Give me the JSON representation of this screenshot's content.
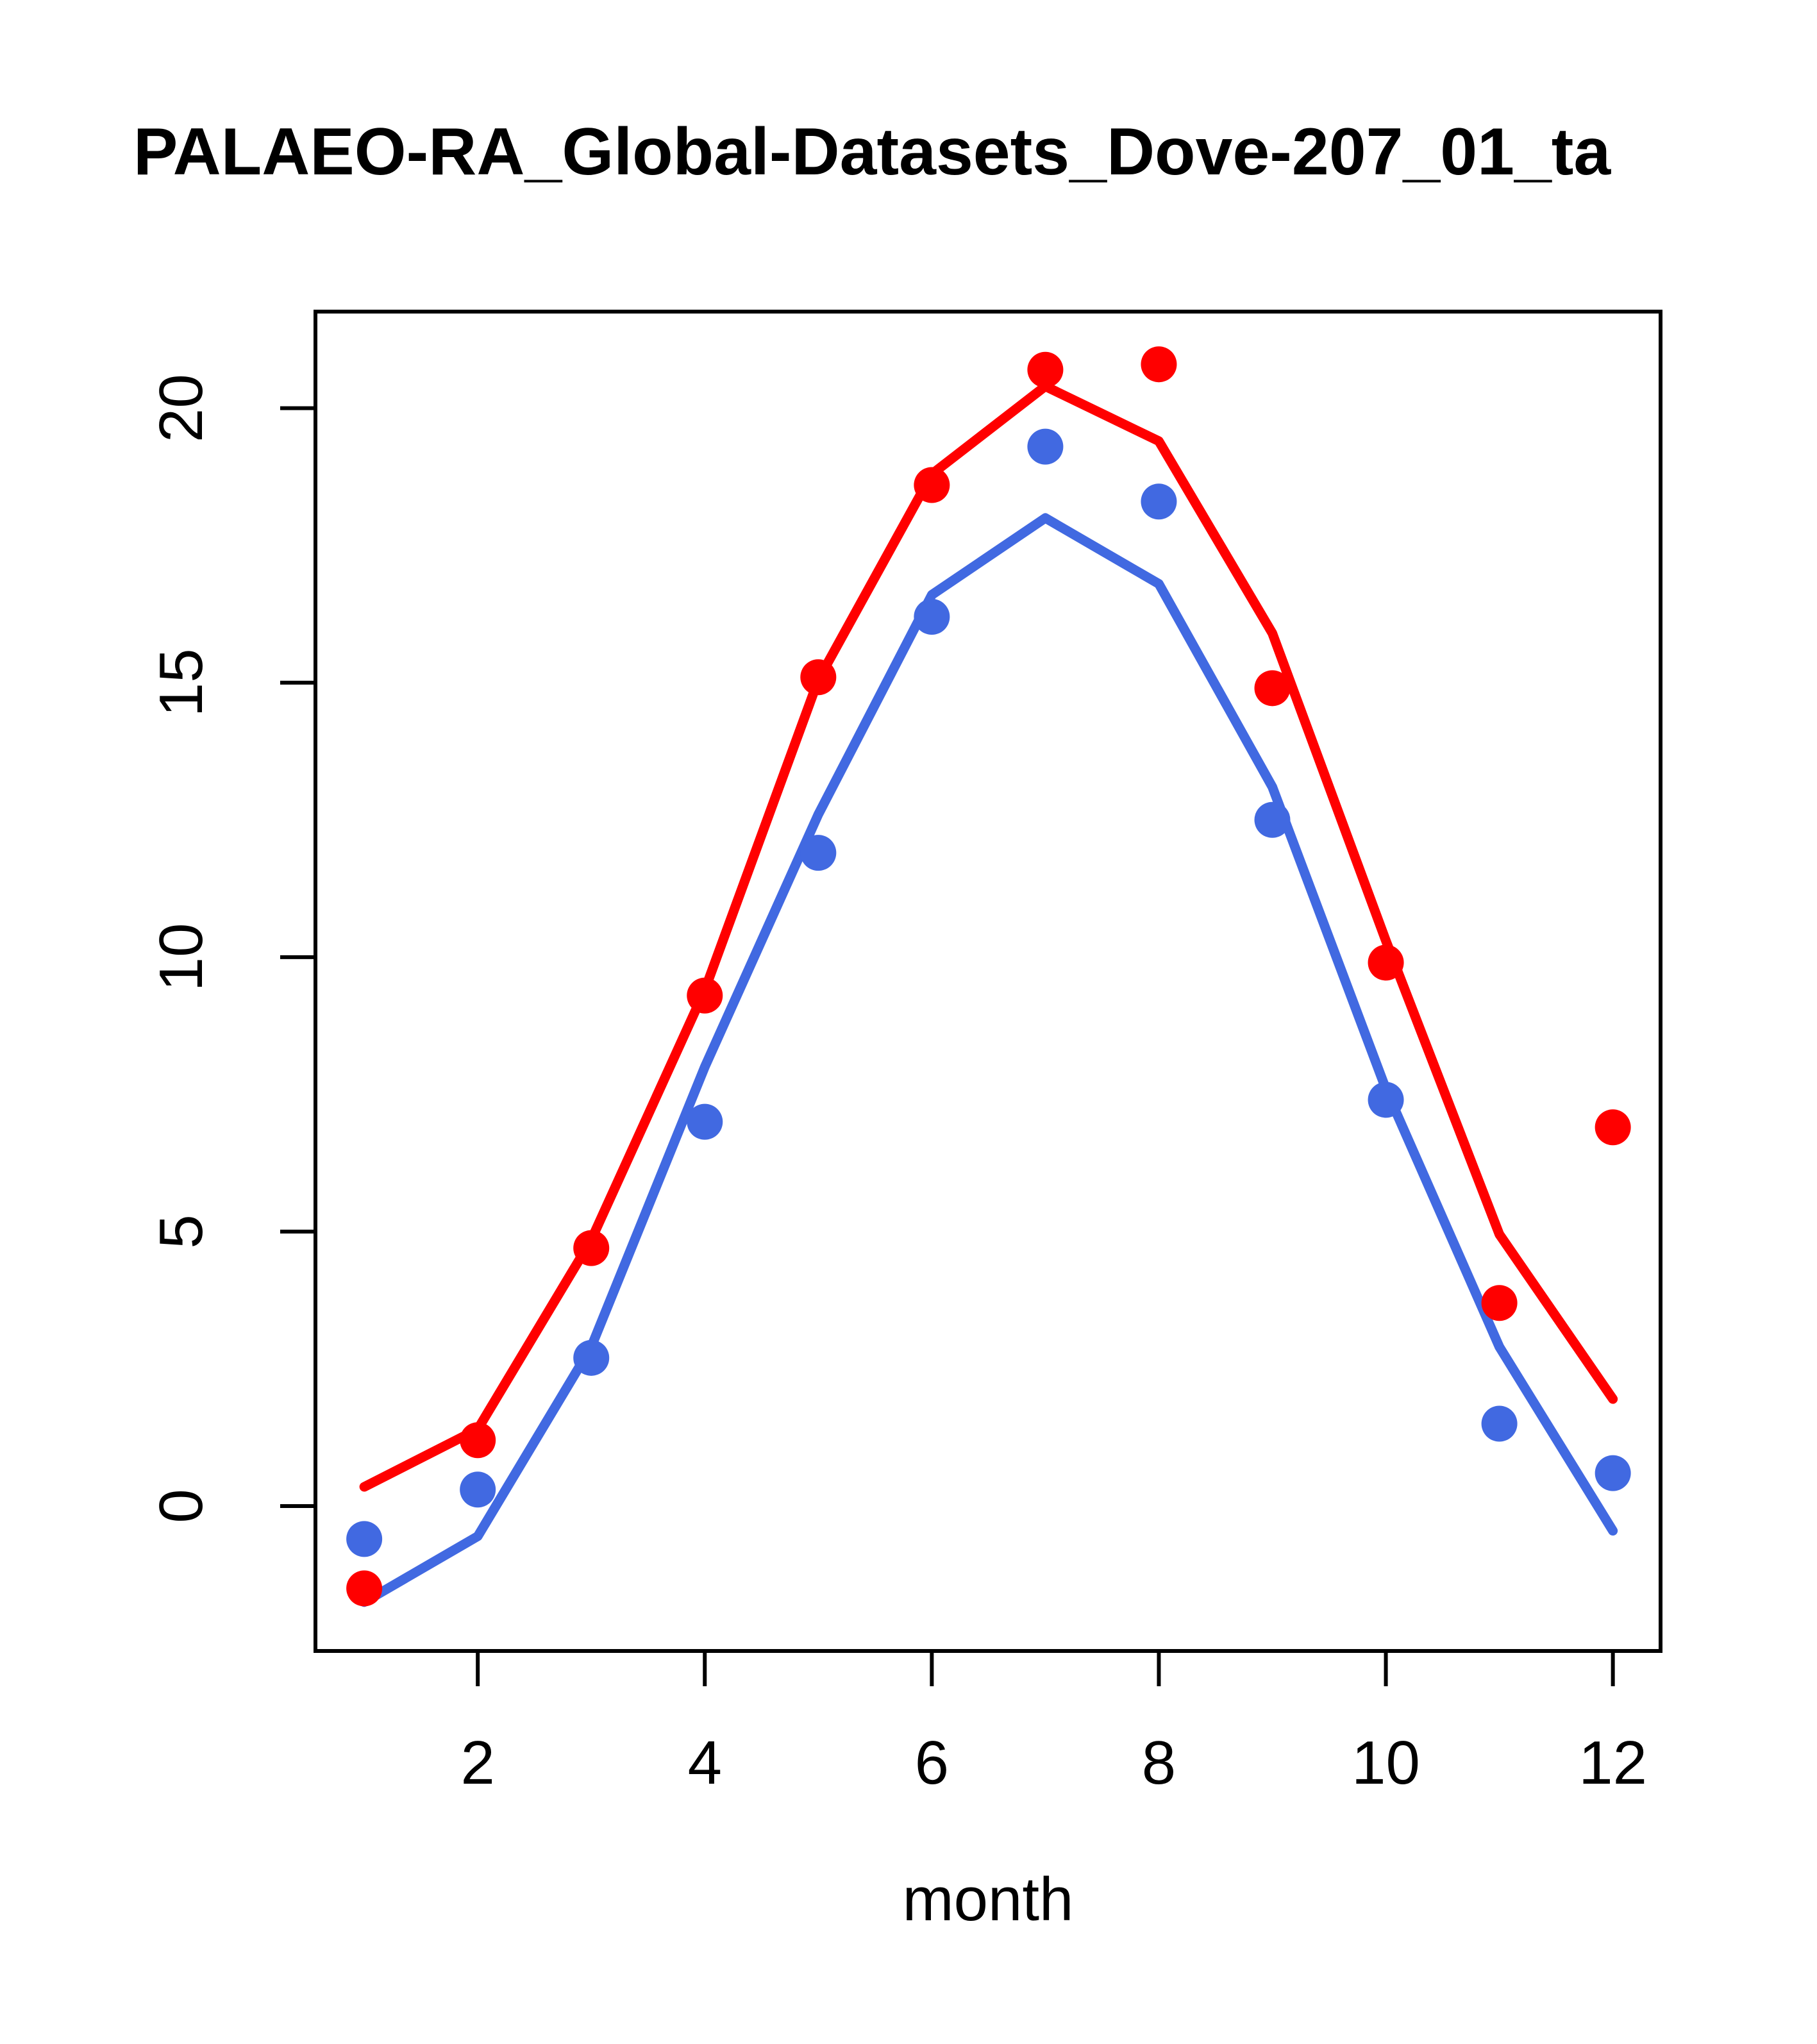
{
  "title": "PALAEO-RA_Global-Datasets_Dove-207_01_ta",
  "colors": {
    "red": "#FF0000",
    "blue": "#4169E1",
    "axis": "#000000",
    "background": "#FFFFFF"
  },
  "chart_data": {
    "type": "line",
    "title": "PALAEO-RA_Global-Datasets_Dove-207_01_ta",
    "xlabel": "month",
    "ylabel": "",
    "x": [
      1,
      2,
      3,
      4,
      5,
      6,
      7,
      8,
      9,
      10,
      11,
      12
    ],
    "xlim": [
      0.57,
      12.42
    ],
    "ylim": [
      -2.64,
      21.76
    ],
    "xticks": [
      2,
      4,
      6,
      8,
      10,
      12
    ],
    "yticks": [
      0,
      5,
      10,
      15,
      20
    ],
    "grid": false,
    "legend": null,
    "series": [
      {
        "name": "red-line",
        "kind": "line",
        "color_key": "red",
        "values": [
          0.35,
          1.4,
          4.85,
          9.4,
          15.05,
          18.8,
          20.4,
          19.4,
          15.9,
          10.3,
          4.95,
          1.95
        ]
      },
      {
        "name": "blue-line",
        "kind": "line",
        "color_key": "blue",
        "values": [
          -1.75,
          -0.55,
          2.9,
          8.0,
          12.6,
          16.6,
          18.0,
          16.8,
          13.1,
          7.6,
          2.9,
          -0.45
        ]
      },
      {
        "name": "red-points",
        "kind": "scatter",
        "color_key": "red",
        "values": [
          -1.5,
          1.2,
          4.7,
          9.3,
          15.1,
          18.6,
          20.7,
          20.8,
          14.9,
          9.9,
          3.7,
          6.9
        ]
      },
      {
        "name": "blue-points",
        "kind": "scatter",
        "color_key": "blue",
        "values": [
          -0.6,
          0.3,
          2.7,
          7.0,
          11.9,
          16.2,
          19.3,
          18.3,
          12.5,
          7.4,
          1.5,
          0.6
        ]
      }
    ]
  }
}
